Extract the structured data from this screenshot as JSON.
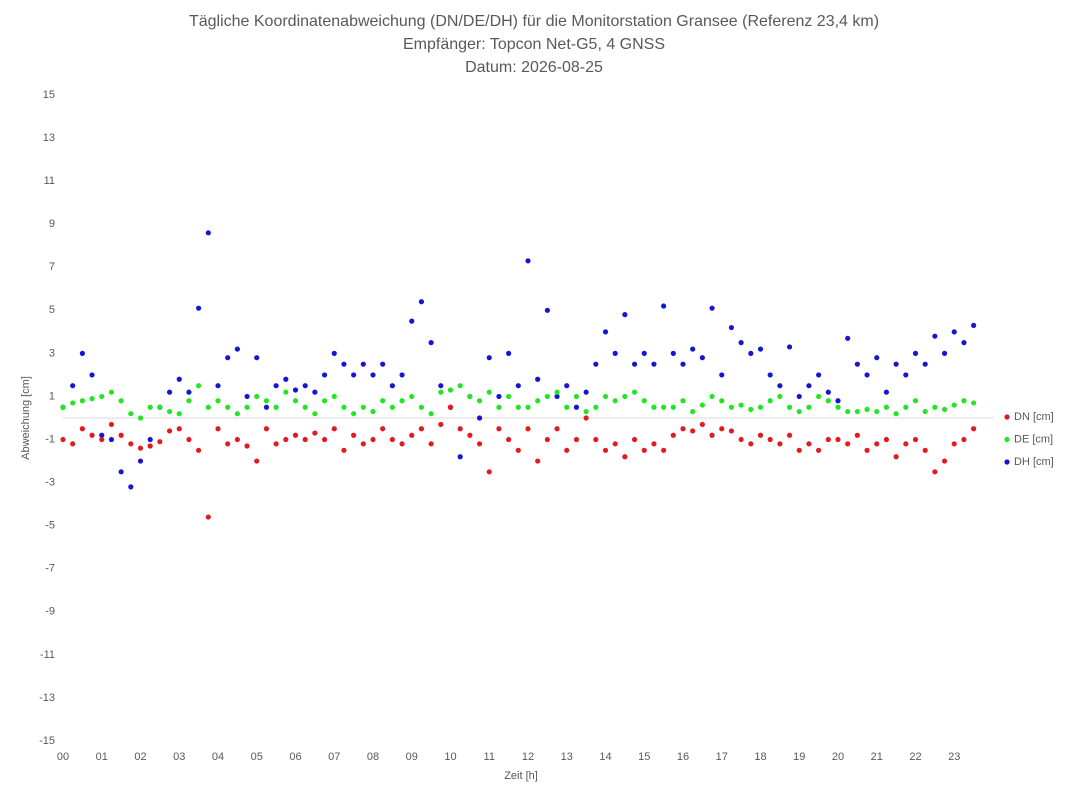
{
  "chart_data": {
    "type": "scatter",
    "title": "Tägliche Koordinatenabweichung (DN/DE/DH) für die Monitorstation Gransee (Referenz 23,4 km)",
    "subtitle": [
      "Empfänger: Topcon Net-G5, 4 GNSS",
      "Datum: 2026-08-25"
    ],
    "xlabel": "Zeit [h]",
    "ylabel": "Abweichung [cm]",
    "xlim": [
      0,
      24
    ],
    "ylim": [
      -15,
      15
    ],
    "xticks": [
      {
        "value": 0,
        "label": "00"
      },
      {
        "value": 1,
        "label": "01"
      },
      {
        "value": 2,
        "label": "02"
      },
      {
        "value": 3,
        "label": "03"
      },
      {
        "value": 4,
        "label": "04"
      },
      {
        "value": 5,
        "label": "05"
      },
      {
        "value": 6,
        "label": "06"
      },
      {
        "value": 7,
        "label": "07"
      },
      {
        "value": 8,
        "label": "08"
      },
      {
        "value": 9,
        "label": "09"
      },
      {
        "value": 10,
        "label": "10"
      },
      {
        "value": 11,
        "label": "11"
      },
      {
        "value": 12,
        "label": "12"
      },
      {
        "value": 13,
        "label": "13"
      },
      {
        "value": 14,
        "label": "14"
      },
      {
        "value": 15,
        "label": "15"
      },
      {
        "value": 16,
        "label": "16"
      },
      {
        "value": 17,
        "label": "17"
      },
      {
        "value": 18,
        "label": "18"
      },
      {
        "value": 19,
        "label": "19"
      },
      {
        "value": 20,
        "label": "20"
      },
      {
        "value": 21,
        "label": "21"
      },
      {
        "value": 22,
        "label": "22"
      },
      {
        "value": 23,
        "label": "23"
      }
    ],
    "yticks": [
      -15,
      -13,
      -11,
      -9,
      -7,
      -5,
      -3,
      -1,
      1,
      3,
      5,
      7,
      9,
      11,
      13,
      15
    ],
    "grid": false,
    "legend": "right",
    "x": [
      0,
      0.25,
      0.5,
      0.75,
      1,
      1.25,
      1.5,
      1.75,
      2,
      2.25,
      2.5,
      2.75,
      3,
      3.25,
      3.5,
      3.75,
      4,
      4.25,
      4.5,
      4.75,
      5,
      5.25,
      5.5,
      5.75,
      6,
      6.25,
      6.5,
      6.75,
      7,
      7.25,
      7.5,
      7.75,
      8,
      8.25,
      8.5,
      8.75,
      9,
      9.25,
      9.5,
      9.75,
      10,
      10.25,
      10.5,
      10.75,
      11,
      11.25,
      11.5,
      11.75,
      12,
      12.25,
      12.5,
      12.75,
      13,
      13.25,
      13.5,
      13.75,
      14,
      14.25,
      14.5,
      14.75,
      15,
      15.25,
      15.5,
      15.75,
      16,
      16.25,
      16.5,
      16.75,
      17,
      17.25,
      17.5,
      17.75,
      18,
      18.25,
      18.5,
      18.75,
      19,
      19.25,
      19.5,
      19.75,
      20,
      20.25,
      20.5,
      20.75,
      21,
      21.25,
      21.5,
      21.75,
      22,
      22.25,
      22.5,
      22.75,
      23,
      23.25,
      23.5
    ],
    "series": [
      {
        "name": "DN [cm]",
        "color": "#e41a1c",
        "values": [
          -1.0,
          -1.2,
          -0.5,
          -0.8,
          -1.0,
          -0.3,
          -0.8,
          -1.2,
          -1.4,
          -1.3,
          -1.1,
          -0.6,
          -0.5,
          -1.0,
          -1.5,
          -4.6,
          -0.5,
          -1.2,
          -1.0,
          -1.3,
          -2.0,
          -0.5,
          -1.2,
          -1.0,
          -0.8,
          -1.0,
          -0.7,
          -1.0,
          -0.5,
          -1.5,
          -0.8,
          -1.2,
          -1.0,
          -0.5,
          -1.0,
          -1.2,
          -0.8,
          -0.5,
          -1.2,
          -0.3,
          0.5,
          -0.5,
          -0.8,
          -1.2,
          -2.5,
          -0.5,
          -1.0,
          -1.5,
          -0.5,
          -2.0,
          -1.0,
          -0.5,
          -1.5,
          -1.0,
          0.0,
          -1.0,
          -1.5,
          -1.2,
          -1.8,
          -1.0,
          -1.5,
          -1.2,
          -1.5,
          -0.8,
          -0.5,
          -0.6,
          -0.3,
          -0.8,
          -0.5,
          -0.6,
          -1.0,
          -1.2,
          -0.8,
          -1.0,
          -1.2,
          -0.8,
          -1.5,
          -1.2,
          -1.5,
          -1.0,
          -1.0,
          -1.2,
          -0.8,
          -1.5,
          -1.2,
          -1.0,
          -1.8,
          -1.2,
          -1.0,
          -1.5,
          -2.5,
          -2.0,
          -1.2,
          -1.0,
          -0.5
        ]
      },
      {
        "name": "DE [cm]",
        "color": "#22e622",
        "values": [
          0.5,
          0.7,
          0.8,
          0.9,
          1.0,
          1.2,
          0.8,
          0.2,
          0.0,
          0.5,
          0.5,
          0.3,
          0.2,
          0.8,
          1.5,
          0.5,
          0.8,
          0.5,
          0.2,
          0.5,
          1.0,
          0.8,
          0.5,
          1.2,
          0.8,
          0.5,
          0.2,
          0.8,
          1.0,
          0.5,
          0.2,
          0.5,
          0.3,
          0.8,
          0.5,
          0.8,
          1.0,
          0.5,
          0.2,
          1.2,
          1.3,
          1.5,
          1.0,
          0.8,
          1.2,
          0.5,
          1.0,
          0.5,
          0.5,
          0.8,
          1.0,
          1.2,
          0.5,
          1.0,
          0.3,
          0.5,
          1.0,
          0.8,
          1.0,
          1.2,
          0.8,
          0.5,
          0.5,
          0.5,
          0.8,
          0.3,
          0.6,
          1.0,
          0.8,
          0.5,
          0.6,
          0.4,
          0.5,
          0.8,
          1.0,
          0.5,
          0.3,
          0.5,
          1.0,
          0.8,
          0.5,
          0.3,
          0.3,
          0.4,
          0.3,
          0.5,
          0.2,
          0.5,
          0.8,
          0.3,
          0.5,
          0.4,
          0.6,
          0.8,
          0.7
        ]
      },
      {
        "name": "DH [cm]",
        "color": "#1515d4",
        "values": [
          0.5,
          1.5,
          3.0,
          2.0,
          -0.8,
          -1.0,
          -2.5,
          -3.2,
          -2.0,
          -1.0,
          0.5,
          1.2,
          1.8,
          1.2,
          5.1,
          8.6,
          1.5,
          2.8,
          3.2,
          1.0,
          2.8,
          0.5,
          1.5,
          1.8,
          1.3,
          1.5,
          1.2,
          2.0,
          3.0,
          2.5,
          2.0,
          2.5,
          2.0,
          2.5,
          1.5,
          2.0,
          4.5,
          5.4,
          3.5,
          1.5,
          0.5,
          -1.8,
          1.0,
          0.0,
          2.8,
          1.0,
          3.0,
          1.5,
          7.3,
          1.8,
          5.0,
          1.0,
          1.5,
          0.5,
          1.2,
          2.5,
          4.0,
          3.0,
          4.8,
          2.5,
          3.0,
          2.5,
          5.2,
          3.0,
          2.5,
          3.2,
          2.8,
          5.1,
          2.0,
          4.2,
          3.5,
          3.0,
          3.2,
          2.0,
          1.5,
          3.3,
          1.0,
          1.5,
          2.0,
          1.2,
          0.8,
          3.7,
          2.5,
          2.0,
          2.8,
          1.2,
          2.5,
          2.0,
          3.0,
          2.5,
          3.8,
          3.0,
          4.0,
          3.5,
          4.3
        ]
      }
    ]
  }
}
